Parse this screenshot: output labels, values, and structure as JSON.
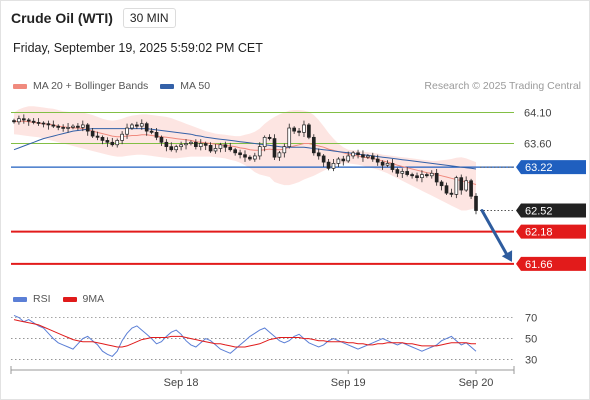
{
  "header": {
    "instrument": "Crude Oil (WTI)",
    "timeframe": "30 MIN",
    "datetime": "Friday, September 19, 2025 5:59:02 PM CET"
  },
  "legend": {
    "items": [
      {
        "label": "MA 20 + Bollinger Bands",
        "color": "#f08a7e"
      },
      {
        "label": "MA 50",
        "color": "#3461a8"
      }
    ],
    "copyright": "Research © 2025 Trading Central"
  },
  "rsi_legend": {
    "items": [
      {
        "label": "RSI",
        "color": "#5b7fd6"
      },
      {
        "label": "9MA",
        "color": "#e01b1b"
      }
    ]
  },
  "chart_data": [
    {
      "type": "candlestick",
      "ylim": [
        61.4,
        64.35
      ],
      "x_ticks": [
        {
          "label": "Sep 18",
          "index": 34
        },
        {
          "label": "Sep 19",
          "index": 68
        },
        {
          "label": "Sep 20",
          "index": 94
        }
      ],
      "n_bars": 95,
      "candles_close": [
        63.95,
        64.0,
        63.98,
        63.96,
        63.94,
        63.93,
        63.92,
        63.9,
        63.88,
        63.86,
        63.85,
        63.86,
        63.88,
        63.86,
        63.9,
        63.8,
        63.72,
        63.7,
        63.65,
        63.62,
        63.58,
        63.65,
        63.75,
        63.85,
        63.9,
        63.88,
        63.92,
        63.8,
        63.78,
        63.7,
        63.62,
        63.55,
        63.5,
        63.55,
        63.58,
        63.6,
        63.62,
        63.55,
        63.6,
        63.57,
        63.48,
        63.52,
        63.58,
        63.54,
        63.5,
        63.45,
        63.42,
        63.38,
        63.35,
        63.4,
        63.55,
        63.7,
        63.68,
        63.38,
        63.45,
        63.55,
        63.85,
        63.8,
        63.78,
        63.9,
        63.7,
        63.45,
        63.4,
        63.3,
        63.2,
        63.28,
        63.35,
        63.32,
        63.4,
        63.45,
        63.42,
        63.38,
        63.4,
        63.35,
        63.3,
        63.25,
        63.28,
        63.18,
        63.12,
        63.15,
        63.1,
        63.08,
        63.05,
        63.1,
        63.08,
        63.12,
        62.98,
        62.92,
        62.8,
        62.78,
        63.05,
        62.85,
        63.0,
        62.75,
        62.52
      ],
      "levels": {
        "resistance": [
          {
            "label": "64.10",
            "value": 64.1,
            "color": "#82bf45"
          },
          {
            "label": "63.60",
            "value": 63.6,
            "color": "#82bf45"
          }
        ],
        "pivot": {
          "label": "63.22",
          "value": 63.22,
          "color": "#1f5fbf"
        },
        "last": {
          "label": "62.52",
          "value": 62.52,
          "color": "#222222"
        },
        "support": [
          {
            "label": "62.18",
            "value": 62.18,
            "color": "#e21b1b"
          },
          {
            "label": "61.66",
            "value": 61.66,
            "color": "#e21b1b"
          }
        ]
      },
      "ma20": [
        63.95,
        63.96,
        63.96,
        63.95,
        63.94,
        63.93,
        63.92,
        63.91,
        63.9,
        63.88,
        63.87,
        63.86,
        63.85,
        63.85,
        63.84,
        63.82,
        63.8,
        63.78,
        63.76,
        63.74,
        63.72,
        63.71,
        63.71,
        63.72,
        63.73,
        63.73,
        63.74,
        63.74,
        63.73,
        63.72,
        63.71,
        63.7,
        63.69,
        63.68,
        63.67,
        63.66,
        63.65,
        63.63,
        63.62,
        63.61,
        63.6,
        63.59,
        63.58,
        63.57,
        63.56,
        63.55,
        63.53,
        63.52,
        63.5,
        63.49,
        63.49,
        63.5,
        63.51,
        63.5,
        63.5,
        63.51,
        63.54,
        63.56,
        63.58,
        63.6,
        63.6,
        63.58,
        63.56,
        63.54,
        63.51,
        63.49,
        63.47,
        63.45,
        63.43,
        63.41,
        63.4,
        63.38,
        63.37,
        63.36,
        63.34,
        63.32,
        63.3,
        63.28,
        63.25,
        63.23,
        63.21,
        63.19,
        63.17,
        63.15,
        63.13,
        63.12,
        63.1,
        63.08,
        63.06,
        63.04,
        63.02,
        63.0,
        62.98,
        62.96,
        62.94
      ],
      "bb_upper": [
        64.1,
        64.15,
        64.18,
        64.2,
        64.2,
        64.19,
        64.18,
        64.17,
        64.16,
        64.14,
        64.12,
        64.11,
        64.1,
        64.1,
        64.1,
        64.08,
        64.06,
        64.03,
        64.0,
        63.98,
        63.97,
        63.98,
        64.0,
        64.03,
        64.05,
        64.06,
        64.07,
        64.07,
        64.06,
        64.05,
        64.04,
        64.03,
        64.01,
        63.98,
        63.95,
        63.92,
        63.89,
        63.86,
        63.83,
        63.8,
        63.78,
        63.76,
        63.75,
        63.74,
        63.73,
        63.72,
        63.72,
        63.74,
        63.76,
        63.79,
        63.84,
        63.92,
        63.98,
        64.03,
        64.07,
        64.1,
        64.13,
        64.14,
        64.14,
        64.13,
        64.11,
        64.06,
        63.98,
        63.88,
        63.77,
        63.68,
        63.6,
        63.54,
        63.5,
        63.49,
        63.48,
        63.47,
        63.46,
        63.45,
        63.44,
        63.42,
        63.41,
        63.4,
        63.39,
        63.38,
        63.37,
        63.36,
        63.35,
        63.34,
        63.33,
        63.32,
        63.32,
        63.33,
        63.34,
        63.35,
        63.37,
        63.38,
        63.36,
        63.33,
        63.3
      ],
      "bb_lower": [
        63.75,
        63.74,
        63.73,
        63.72,
        63.71,
        63.7,
        63.68,
        63.66,
        63.64,
        63.62,
        63.6,
        63.58,
        63.56,
        63.54,
        63.52,
        63.5,
        63.48,
        63.46,
        63.44,
        63.42,
        63.4,
        63.39,
        63.39,
        63.4,
        63.41,
        63.42,
        63.42,
        63.41,
        63.4,
        63.39,
        63.38,
        63.37,
        63.36,
        63.36,
        63.37,
        63.38,
        63.39,
        63.39,
        63.39,
        63.39,
        63.39,
        63.38,
        63.37,
        63.36,
        63.34,
        63.32,
        63.29,
        63.25,
        63.2,
        63.14,
        63.1,
        63.08,
        63.06,
        62.98,
        62.95,
        62.93,
        62.93,
        62.95,
        62.98,
        63.02,
        63.05,
        63.08,
        63.12,
        63.16,
        63.2,
        63.24,
        63.27,
        63.28,
        63.28,
        63.27,
        63.26,
        63.24,
        63.22,
        63.2,
        63.18,
        63.15,
        63.12,
        63.08,
        63.04,
        63.0,
        62.96,
        62.92,
        62.88,
        62.84,
        62.8,
        62.76,
        62.72,
        62.68,
        62.64,
        62.6,
        62.56,
        62.52,
        62.52,
        62.54,
        62.56
      ],
      "ma50": [
        63.5,
        63.53,
        63.56,
        63.59,
        63.62,
        63.65,
        63.68,
        63.7,
        63.72,
        63.74,
        63.76,
        63.78,
        63.8,
        63.81,
        63.82,
        63.83,
        63.84,
        63.84,
        63.84,
        63.84,
        63.84,
        63.84,
        63.84,
        63.84,
        63.84,
        63.84,
        63.84,
        63.84,
        63.83,
        63.82,
        63.81,
        63.8,
        63.79,
        63.78,
        63.77,
        63.76,
        63.75,
        63.73,
        63.72,
        63.7,
        63.69,
        63.68,
        63.67,
        63.66,
        63.65,
        63.64,
        63.63,
        63.62,
        63.61,
        63.6,
        63.59,
        63.58,
        63.57,
        63.56,
        63.55,
        63.54,
        63.54,
        63.54,
        63.54,
        63.54,
        63.53,
        63.52,
        63.51,
        63.5,
        63.49,
        63.48,
        63.47,
        63.46,
        63.45,
        63.44,
        63.43,
        63.42,
        63.41,
        63.4,
        63.39,
        63.38,
        63.37,
        63.36,
        63.35,
        63.34,
        63.33,
        63.32,
        63.31,
        63.3,
        63.29,
        63.28,
        63.27,
        63.26,
        63.25,
        63.24,
        63.23,
        63.22,
        63.21,
        63.2,
        63.19
      ]
    },
    {
      "type": "line",
      "title": "RSI",
      "ylim": [
        22,
        80
      ],
      "y_ticks": [
        {
          "label": "70",
          "value": 70
        },
        {
          "label": "50",
          "value": 50
        },
        {
          "label": "30",
          "value": 30
        }
      ],
      "series": [
        {
          "name": "RSI",
          "color": "#5b7fd6",
          "values": [
            72,
            70,
            66,
            68,
            65,
            62,
            60,
            55,
            50,
            46,
            44,
            42,
            40,
            45,
            50,
            52,
            48,
            44,
            38,
            35,
            33,
            38,
            48,
            55,
            60,
            62,
            58,
            54,
            50,
            45,
            47,
            52,
            56,
            58,
            54,
            48,
            44,
            42,
            46,
            50,
            48,
            44,
            40,
            38,
            36,
            40,
            44,
            48,
            52,
            55,
            58,
            60,
            56,
            52,
            48,
            46,
            48,
            52,
            54,
            50,
            46,
            44,
            42,
            44,
            48,
            50,
            48,
            46,
            44,
            42,
            40,
            42,
            44,
            46,
            48,
            50,
            48,
            46,
            44,
            46,
            44,
            42,
            40,
            38,
            40,
            42,
            44,
            48,
            50,
            52,
            48,
            44,
            46,
            42,
            38
          ]
        },
        {
          "name": "9MA",
          "color": "#e01b1b",
          "values": [
            68,
            67,
            66,
            65,
            64,
            63,
            61,
            59,
            57,
            55,
            53,
            51,
            49,
            48,
            47,
            47,
            47,
            46,
            45,
            44,
            43,
            42,
            42,
            43,
            45,
            47,
            49,
            50,
            51,
            51,
            51,
            51,
            52,
            52,
            52,
            51,
            50,
            49,
            48,
            47,
            46,
            45,
            45,
            44,
            43,
            42,
            42,
            42,
            43,
            44,
            45,
            47,
            49,
            50,
            51,
            51,
            51,
            51,
            51,
            50,
            50,
            49,
            48,
            48,
            47,
            47,
            47,
            47,
            46,
            46,
            45,
            45,
            44,
            44,
            45,
            45,
            46,
            46,
            46,
            46,
            45,
            45,
            44,
            43,
            43,
            43,
            43,
            44,
            45,
            46,
            46,
            46,
            46,
            45,
            45
          ]
        }
      ]
    }
  ]
}
